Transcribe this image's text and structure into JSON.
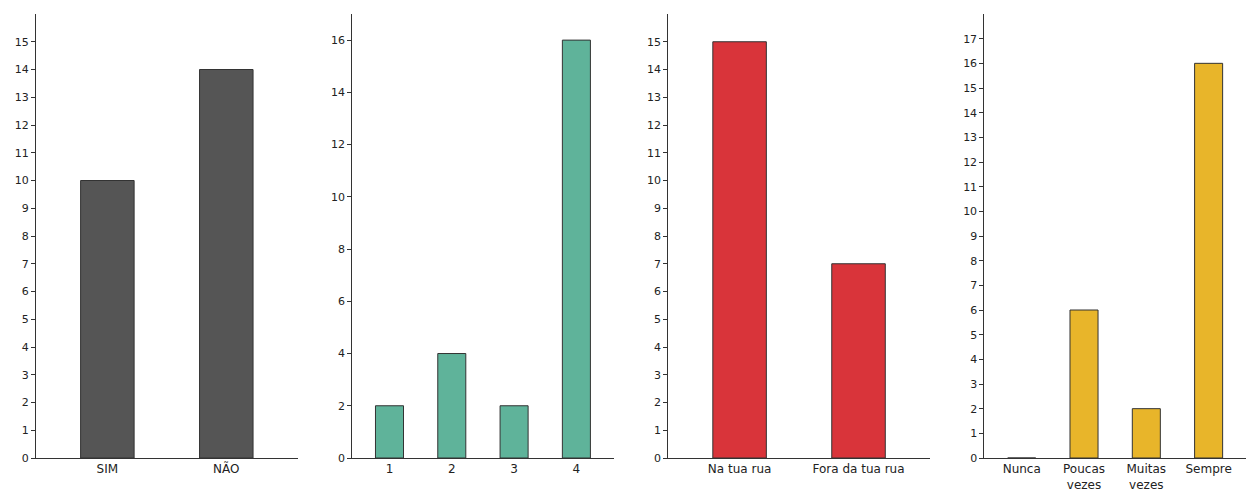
{
  "chart_data": [
    {
      "type": "bar",
      "categories": [
        "SIM",
        "NÃO"
      ],
      "values": [
        10,
        14
      ],
      "color": "#555555",
      "ylim": [
        0,
        16
      ],
      "yticks": [
        0,
        1,
        2,
        3,
        4,
        5,
        6,
        7,
        8,
        9,
        10,
        11,
        12,
        13,
        14,
        15
      ],
      "grid": false
    },
    {
      "type": "bar",
      "categories": [
        "1",
        "2",
        "3",
        "4"
      ],
      "values": [
        2,
        4,
        2,
        16
      ],
      "color": "#5fb39a",
      "ylim": [
        0,
        17
      ],
      "yticks": [
        0,
        2,
        4,
        6,
        8,
        10,
        12,
        14,
        16
      ],
      "grid": false
    },
    {
      "type": "bar",
      "categories": [
        "Na tua rua",
        "Fora da tua rua"
      ],
      "values": [
        15,
        7
      ],
      "color": "#d9343a",
      "ylim": [
        0,
        16
      ],
      "yticks": [
        0,
        1,
        2,
        3,
        4,
        5,
        6,
        7,
        8,
        9,
        10,
        11,
        12,
        13,
        14,
        15
      ],
      "grid": false
    },
    {
      "type": "bar",
      "categories": [
        "Nunca",
        "Poucas vezes",
        "Muitas vezes",
        "Sempre"
      ],
      "values": [
        0,
        6,
        2,
        16
      ],
      "color": "#e8b52a",
      "ylim": [
        0,
        18
      ],
      "yticks": [
        0,
        1,
        2,
        3,
        4,
        5,
        6,
        7,
        8,
        9,
        10,
        11,
        12,
        13,
        14,
        15,
        16,
        17
      ],
      "grid": false
    }
  ]
}
